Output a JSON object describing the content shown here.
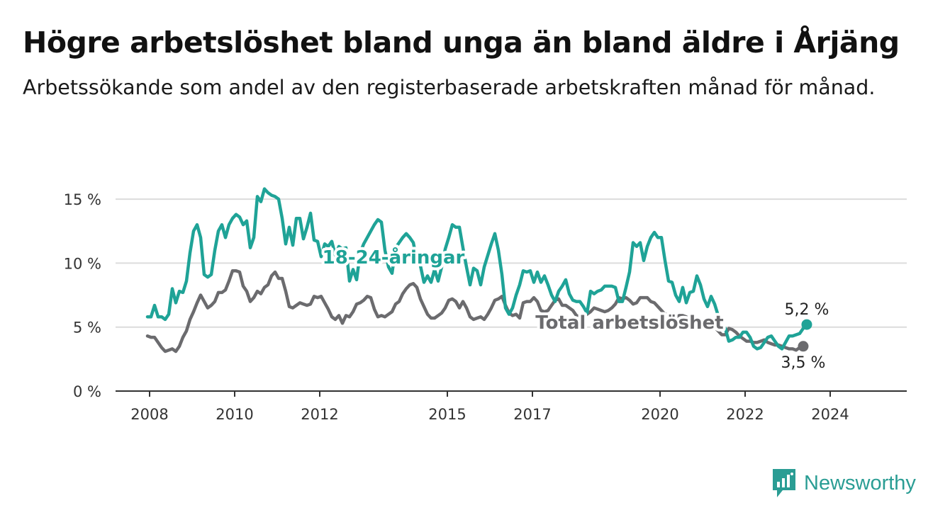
{
  "title": "Högre arbetslöshet bland unga än bland äldre i Årjäng",
  "subtitle": "Arbetssökande som andel av den registerbaserade arbetskraften månad för månad.",
  "brand": {
    "name": "Newsworthy",
    "color": "#2a9d94",
    "icon": "bar-chart-speech-bubble-icon"
  },
  "chart_data": {
    "type": "line",
    "x_ticks": [
      "2008",
      "2010",
      "2012",
      "2015",
      "2017",
      "2020",
      "2022",
      "2024"
    ],
    "y_ticks": [
      "0 %",
      "5 %",
      "10 %",
      "15 %"
    ],
    "y_tick_values": [
      0,
      5,
      10,
      15
    ],
    "ylim": [
      0,
      16
    ],
    "xlim": [
      2007.2,
      2025.8
    ],
    "grid": true,
    "series": [
      {
        "name": "18-24-åringar",
        "color": "#1fa397",
        "end_label": "5,2 %",
        "x_start": 2007.95,
        "step": 0.08333,
        "values": [
          5.8,
          5.8,
          6.7,
          5.8,
          5.8,
          5.6,
          6.0,
          8.0,
          6.9,
          7.8,
          7.7,
          8.6,
          10.8,
          12.5,
          13.0,
          12.0,
          9.1,
          8.9,
          9.1,
          11.0,
          12.5,
          13.0,
          12.0,
          13.0,
          13.5,
          13.8,
          13.6,
          13.0,
          13.3,
          11.2,
          12.0,
          15.2,
          14.8,
          15.8,
          15.5,
          15.3,
          15.2,
          15.0,
          13.5,
          11.5,
          12.8,
          11.4,
          13.5,
          13.5,
          11.9,
          12.8,
          13.9,
          11.8,
          11.7,
          10.5,
          11.5,
          11.3,
          11.7,
          10.6,
          11.3,
          11.1,
          11.2,
          8.6,
          9.5,
          8.7,
          10.8,
          11.5,
          12.0,
          12.5,
          13.0,
          13.4,
          13.2,
          11.0,
          9.7,
          9.2,
          11.2,
          11.6,
          12.0,
          12.3,
          12.0,
          11.6,
          10.2,
          9.8,
          8.5,
          9.0,
          8.5,
          9.5,
          8.6,
          9.7,
          11.1,
          12.0,
          13.0,
          12.8,
          12.8,
          11.2,
          9.7,
          8.3,
          9.6,
          9.4,
          8.3,
          9.7,
          10.6,
          11.5,
          12.3,
          11.0,
          9.1,
          6.5,
          6.0,
          6.5,
          7.5,
          8.3,
          9.4,
          9.3,
          9.4,
          8.5,
          9.3,
          8.5,
          9.0,
          8.3,
          7.5,
          7.0,
          7.8,
          8.2,
          8.7,
          7.6,
          7.1,
          7.0,
          7.0,
          6.6,
          6.1,
          7.8,
          7.6,
          7.8,
          7.9,
          8.2,
          8.2,
          8.2,
          8.1,
          7.0,
          7.0,
          8.1,
          9.3,
          11.6,
          11.3,
          11.6,
          10.2,
          11.3,
          12.0,
          12.4,
          12.0,
          12.0,
          10.2,
          8.6,
          8.5,
          7.5,
          7.0,
          8.1,
          6.9,
          7.7,
          7.8,
          9.0,
          8.3,
          7.2,
          6.6,
          7.4,
          6.8,
          5.9,
          5.2,
          4.9,
          3.9,
          4.0,
          4.2,
          4.2,
          4.6,
          4.6,
          4.2,
          3.5,
          3.3,
          3.4,
          3.8,
          4.2,
          4.3,
          3.9,
          3.5,
          3.3,
          3.8,
          4.3,
          4.3,
          4.4,
          4.5,
          4.9,
          5.2
        ]
      },
      {
        "name": "Total arbetslöshet",
        "color": "#6b6b6e",
        "end_label": "3,5 %",
        "x_start": 2007.95,
        "step": 0.08333,
        "values": [
          4.3,
          4.2,
          4.2,
          3.8,
          3.4,
          3.1,
          3.2,
          3.3,
          3.1,
          3.5,
          4.2,
          4.7,
          5.6,
          6.2,
          6.9,
          7.5,
          7.0,
          6.5,
          6.7,
          7.0,
          7.7,
          7.7,
          7.9,
          8.6,
          9.4,
          9.4,
          9.3,
          8.2,
          7.8,
          7.0,
          7.3,
          7.8,
          7.6,
          8.1,
          8.3,
          9.0,
          9.3,
          8.8,
          8.8,
          7.8,
          6.6,
          6.5,
          6.7,
          6.9,
          6.8,
          6.7,
          6.8,
          7.4,
          7.3,
          7.4,
          6.9,
          6.4,
          5.8,
          5.6,
          5.9,
          5.3,
          5.9,
          5.8,
          6.2,
          6.8,
          6.9,
          7.1,
          7.4,
          7.3,
          6.4,
          5.8,
          5.9,
          5.8,
          6.0,
          6.2,
          6.8,
          7.0,
          7.6,
          8.0,
          8.3,
          8.4,
          8.1,
          7.2,
          6.6,
          6.0,
          5.7,
          5.7,
          5.9,
          6.1,
          6.5,
          7.1,
          7.2,
          7.0,
          6.5,
          7.0,
          6.5,
          5.8,
          5.6,
          5.7,
          5.8,
          5.6,
          6.0,
          6.5,
          7.1,
          7.2,
          7.4,
          6.7,
          6.1,
          5.9,
          6.0,
          5.7,
          6.9,
          7.0,
          7.0,
          7.3,
          7.0,
          6.3,
          6.2,
          6.3,
          6.7,
          7.1,
          7.2,
          6.7,
          6.7,
          6.5,
          6.3,
          5.9,
          5.8,
          5.8,
          6.0,
          6.2,
          6.5,
          6.4,
          6.3,
          6.2,
          6.3,
          6.5,
          6.8,
          7.3,
          7.2,
          7.3,
          7.1,
          6.8,
          6.9,
          7.3,
          7.3,
          7.3,
          7.0,
          6.9,
          6.6,
          6.3,
          6.0,
          6.0,
          5.8,
          5.7,
          5.9,
          5.9,
          5.8,
          5.5,
          5.3,
          5.1,
          5.1,
          5.1,
          5.0,
          5.1,
          5.0,
          4.7,
          4.4,
          4.4,
          4.9,
          4.8,
          4.6,
          4.3,
          4.1,
          3.9,
          3.9,
          3.8,
          3.8,
          3.9,
          4.0,
          3.8,
          3.7,
          3.6,
          3.6,
          3.5,
          3.4,
          3.3,
          3.3,
          3.2,
          3.4,
          3.5
        ]
      }
    ]
  }
}
